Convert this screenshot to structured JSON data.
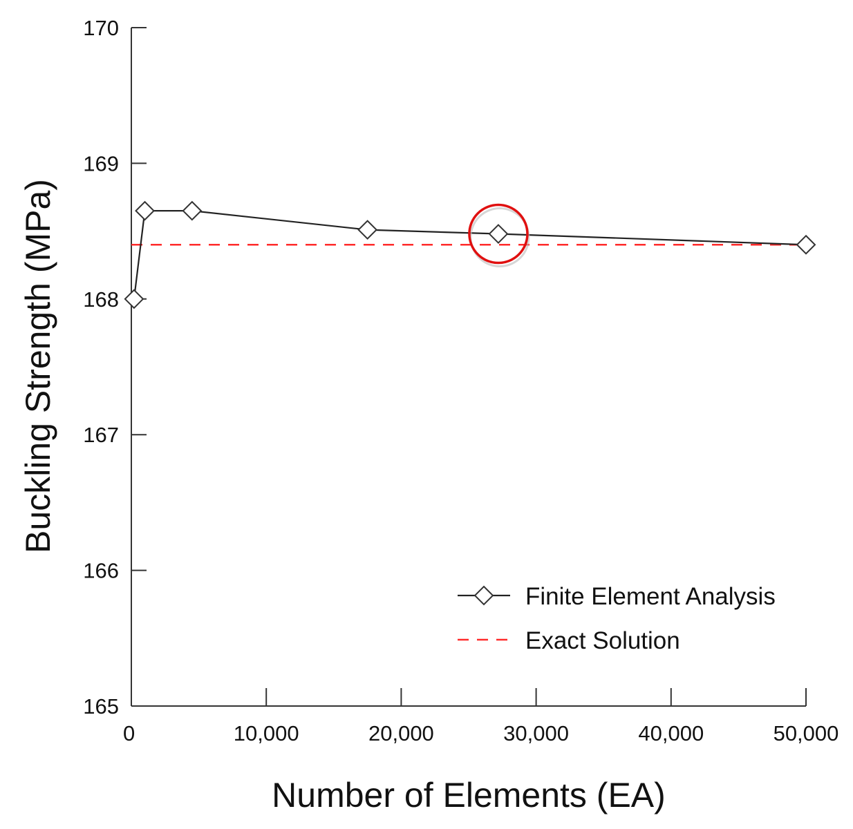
{
  "chart_data": {
    "type": "line",
    "title": "",
    "xlabel": "Number of Elements (EA)",
    "ylabel": "Buckling Strength (MPa)",
    "xlim": [
      0,
      50000
    ],
    "ylim": [
      165,
      170
    ],
    "xticks": [
      {
        "value": 0,
        "label": "0"
      },
      {
        "value": 10000,
        "label": "10,000"
      },
      {
        "value": 20000,
        "label": "20,000"
      },
      {
        "value": 30000,
        "label": "30,000"
      },
      {
        "value": 40000,
        "label": "40,000"
      },
      {
        "value": 50000,
        "label": "50,000"
      }
    ],
    "yticks": [
      {
        "value": 165,
        "label": "165"
      },
      {
        "value": 166,
        "label": "166"
      },
      {
        "value": 167,
        "label": "167"
      },
      {
        "value": 168,
        "label": "168"
      },
      {
        "value": 169,
        "label": "169"
      },
      {
        "value": 170,
        "label": "170"
      }
    ],
    "grid": false,
    "legend_position": "bottom-right",
    "series": [
      {
        "name": "Finite Element Analysis",
        "color": "#222222",
        "line_style": "solid",
        "marker": "diamond-open",
        "x": [
          200,
          1000,
          4500,
          17500,
          27200,
          50000
        ],
        "y": [
          168.0,
          168.65,
          168.65,
          168.51,
          168.48,
          168.4
        ]
      },
      {
        "name": "Exact Solution",
        "color": "#ff2a2a",
        "line_style": "dashed",
        "marker": "none",
        "x": [
          0,
          50000
        ],
        "y": [
          168.4,
          168.4
        ]
      }
    ],
    "annotations": [
      {
        "type": "circle-highlight",
        "color": "#e01010",
        "x": 27200,
        "y": 168.48
      }
    ]
  }
}
